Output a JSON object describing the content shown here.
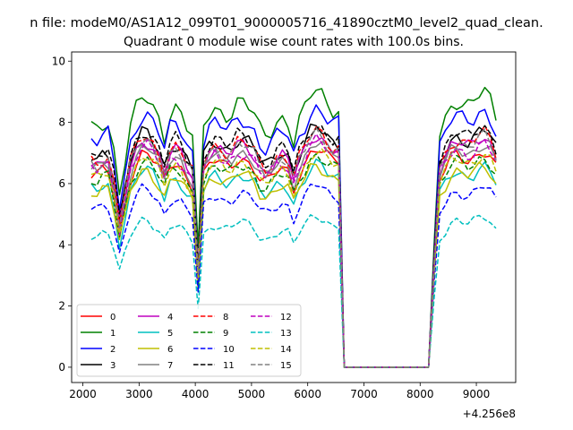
{
  "chart_data": {
    "type": "line",
    "suptitle": "n file: modeM0/AS1A12_099T01_9000005716_41890cztM0_level2_quad_clean.",
    "title": "Quadrant 0 module wise count rates with 100.0s bins.",
    "xlabel": "",
    "ylabel": "",
    "x_offset_label": "+4.256e8",
    "xlim": [
      1800,
      9700
    ],
    "ylim": [
      -0.5,
      10.3
    ],
    "x_ticks": [
      2000,
      3000,
      4000,
      5000,
      6000,
      7000,
      8000,
      9000
    ],
    "y_ticks": [
      0,
      2,
      4,
      6,
      8,
      10
    ],
    "grid": false,
    "legend_position": "lower-left",
    "legend_columns": 4,
    "gap": {
      "start": 6700,
      "end": 8300
    },
    "x_start": 2150,
    "x_step": 100,
    "x_end": 9350,
    "series": [
      {
        "name": "0",
        "color": "#ff0000",
        "dash": "solid",
        "base": 6.5
      },
      {
        "name": "1",
        "color": "#008000",
        "dash": "solid",
        "base": 8.2
      },
      {
        "name": "2",
        "color": "#0000ff",
        "dash": "solid",
        "base": 7.7
      },
      {
        "name": "3",
        "color": "#000000",
        "dash": "solid",
        "base": 7.1
      },
      {
        "name": "4",
        "color": "#bf00bf",
        "dash": "solid",
        "base": 6.9
      },
      {
        "name": "5",
        "color": "#00bfbf",
        "dash": "solid",
        "base": 6.0
      },
      {
        "name": "6",
        "color": "#bfbf00",
        "dash": "solid",
        "base": 6.0
      },
      {
        "name": "7",
        "color": "#808080",
        "dash": "solid",
        "base": 6.7
      },
      {
        "name": "8",
        "color": "#ff0000",
        "dash": "dashed",
        "base": 7.0
      },
      {
        "name": "9",
        "color": "#008000",
        "dash": "dashed",
        "base": 6.3
      },
      {
        "name": "10",
        "color": "#0000ff",
        "dash": "dashed",
        "base": 5.4
      },
      {
        "name": "11",
        "color": "#000000",
        "dash": "dashed",
        "base": 7.2
      },
      {
        "name": "12",
        "color": "#bf00bf",
        "dash": "dashed",
        "base": 6.7
      },
      {
        "name": "13",
        "color": "#00bfbf",
        "dash": "dashed",
        "base": 4.5
      },
      {
        "name": "14",
        "color": "#bfbf00",
        "dash": "dashed",
        "base": 6.4
      },
      {
        "name": "15",
        "color": "#808080",
        "dash": "dashed",
        "base": 6.9
      }
    ]
  }
}
